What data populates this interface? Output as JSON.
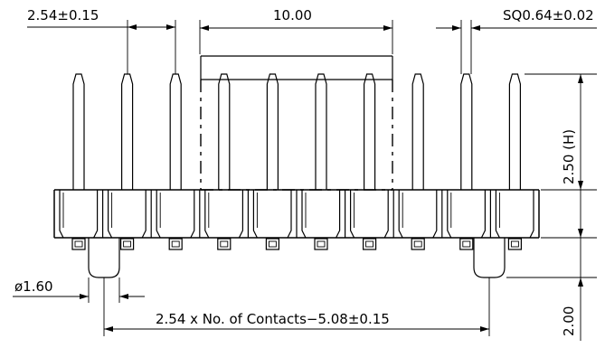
{
  "drawing": {
    "contact_count": 10,
    "dimensions": {
      "pitch": "2.54±0.15",
      "shroud_width": "10.00",
      "pin_square": "SQ0.64±0.02",
      "pin_height": "2.50 (H)",
      "post_diameter": "ø1.60",
      "post_spacing": "2.54 x No. of Contacts−5.08±0.15",
      "post_height": "2.00"
    }
  }
}
